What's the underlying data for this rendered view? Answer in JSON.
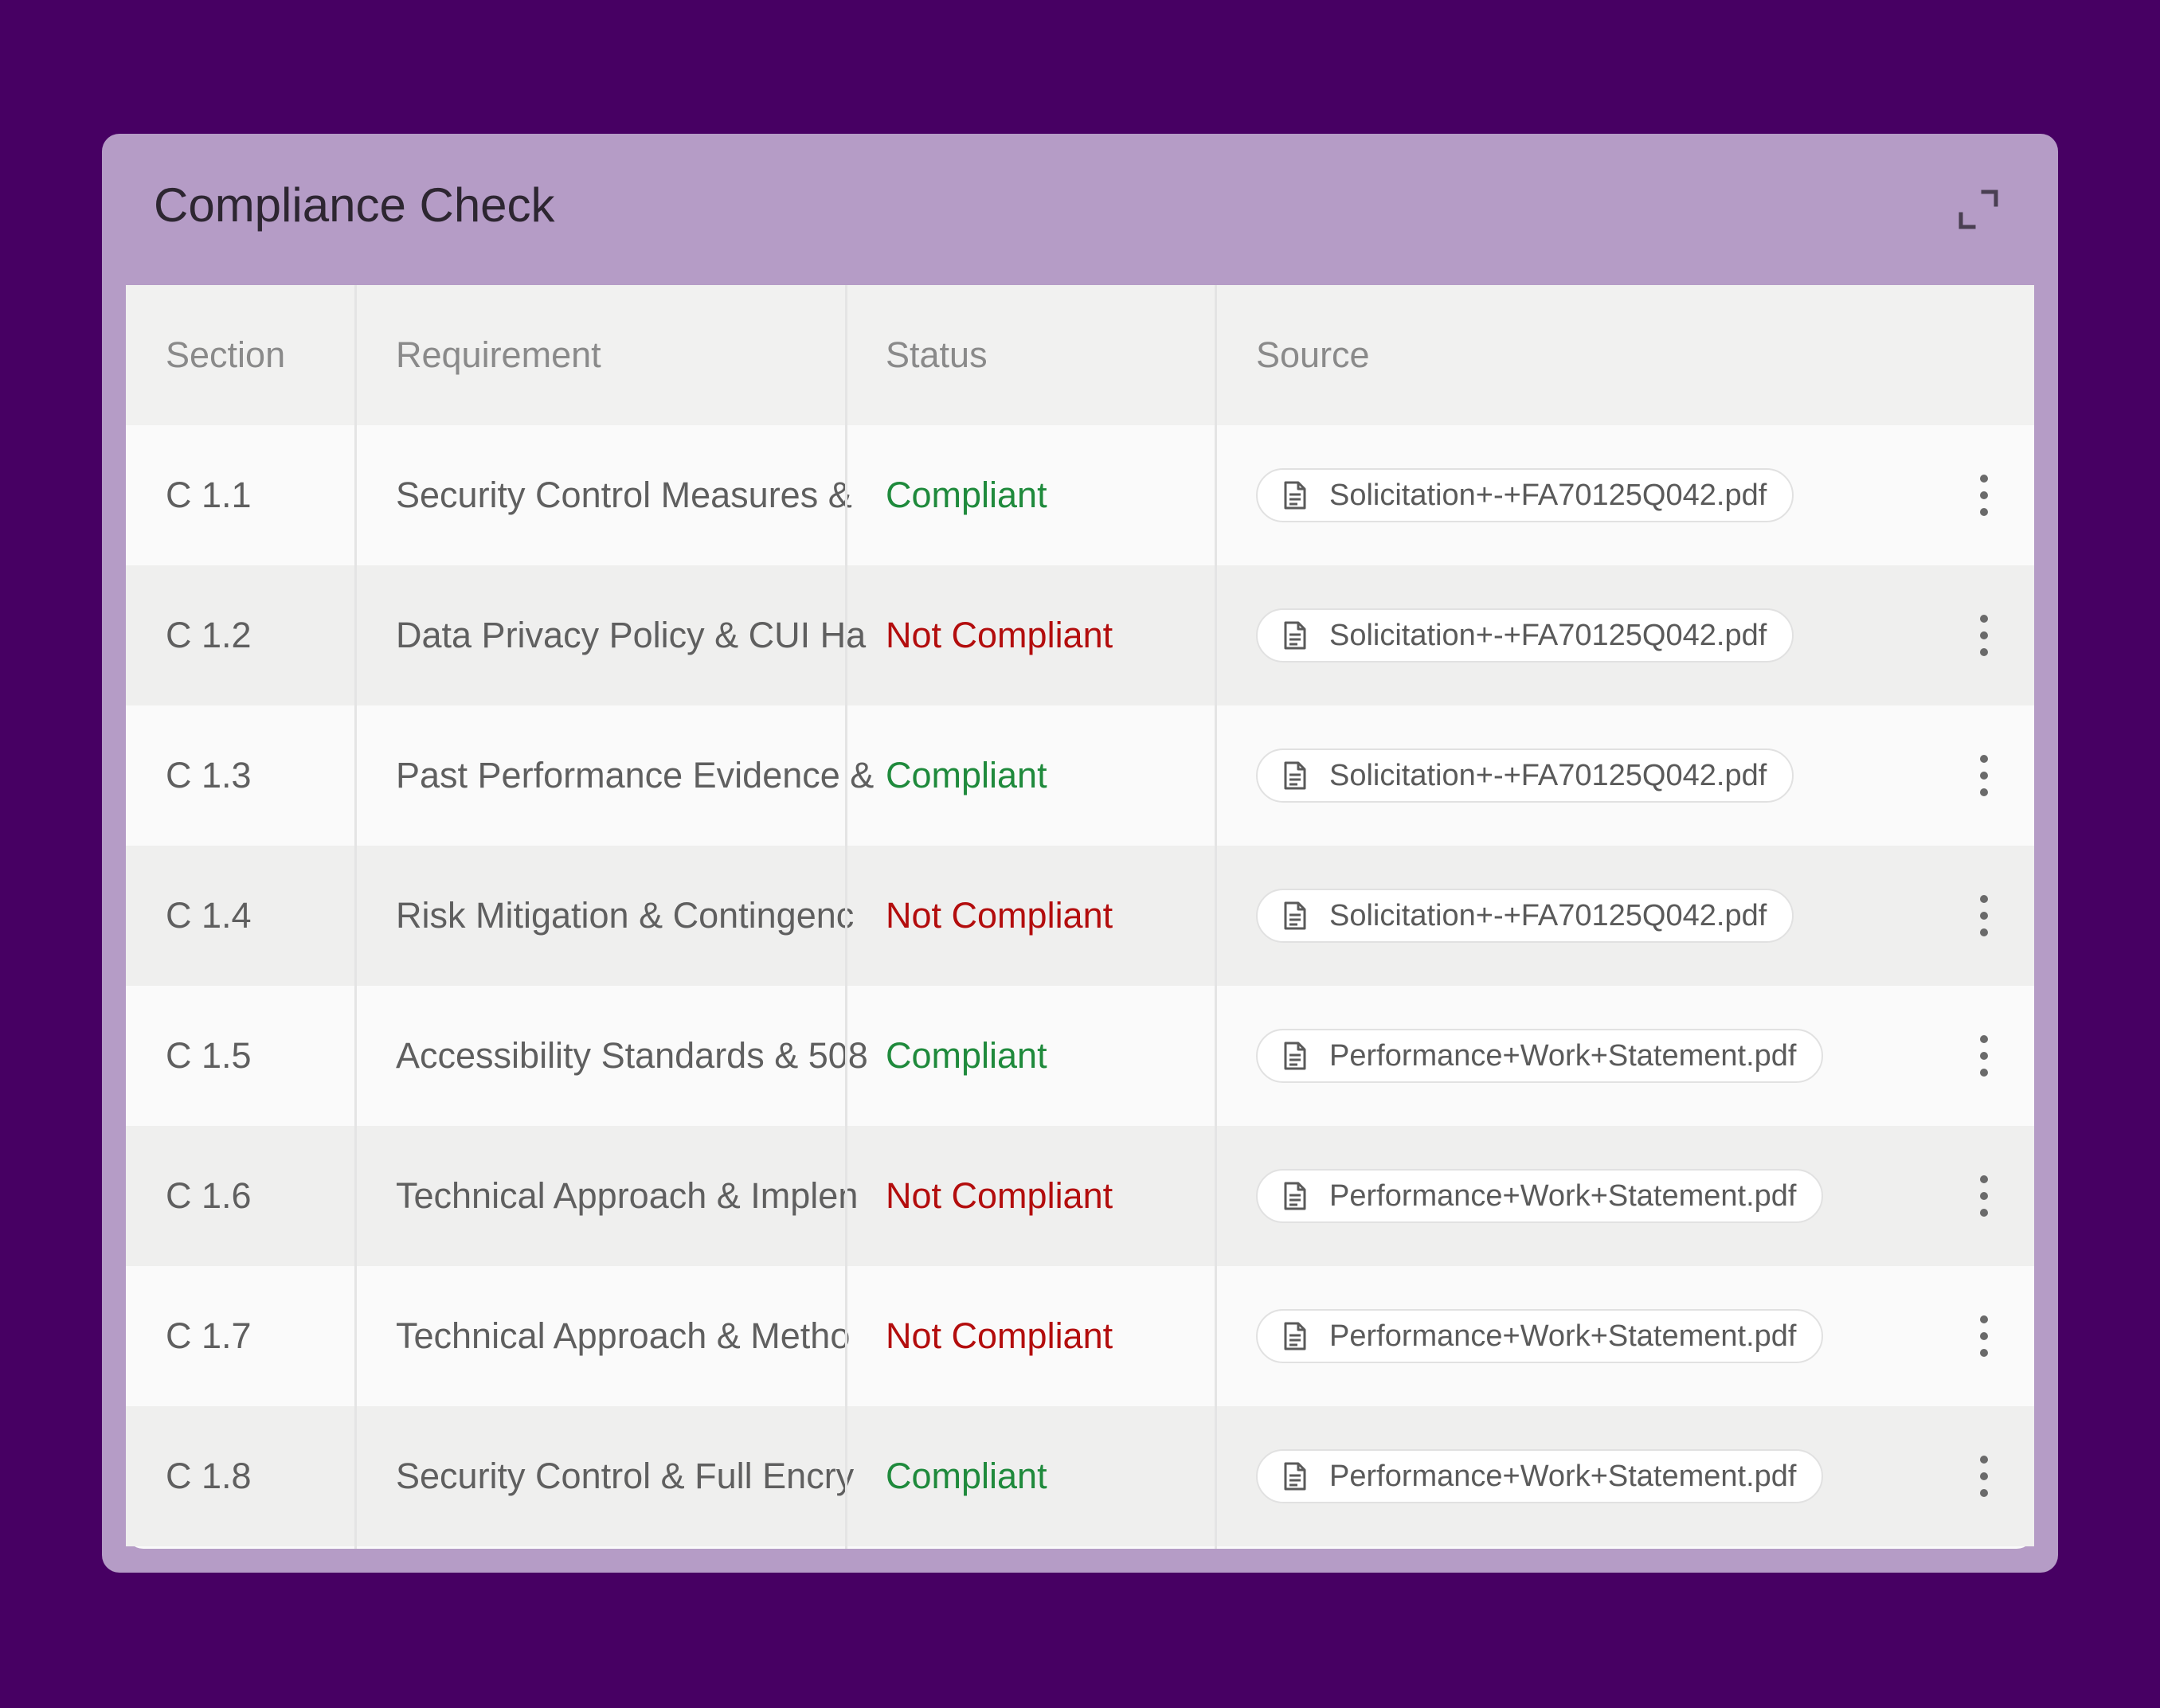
{
  "panel": {
    "title": "Compliance Check",
    "expand_icon": "expand-icon"
  },
  "table": {
    "columns": [
      "Section",
      "Requirement",
      "Status",
      "Source"
    ],
    "rows": [
      {
        "section": "C 1.1",
        "requirement": "Security Control Measures &",
        "status": "Compliant",
        "source": "Solicitation+-+FA70125Q042.pdf"
      },
      {
        "section": "C 1.2",
        "requirement": "Data Privacy Policy & CUI Ha",
        "status": "Not Compliant",
        "source": "Solicitation+-+FA70125Q042.pdf"
      },
      {
        "section": "C 1.3",
        "requirement": "Past Performance Evidence &",
        "status": "Compliant",
        "source": "Solicitation+-+FA70125Q042.pdf"
      },
      {
        "section": "C 1.4",
        "requirement": "Risk Mitigation & Contingenc",
        "status": "Not Compliant",
        "source": "Solicitation+-+FA70125Q042.pdf"
      },
      {
        "section": "C 1.5",
        "requirement": "Accessibility Standards & 508",
        "status": "Compliant",
        "source": "Performance+Work+Statement.pdf"
      },
      {
        "section": "C 1.6",
        "requirement": "Technical Approach & Implen",
        "status": "Not Compliant",
        "source": "Performance+Work+Statement.pdf"
      },
      {
        "section": "C 1.7",
        "requirement": "Technical Approach & Metho",
        "status": "Not Compliant",
        "source": "Performance+Work+Statement.pdf"
      },
      {
        "section": "C 1.8",
        "requirement": "Security Control & Full Encry",
        "status": "Compliant",
        "source": "Performance+Work+Statement.pdf"
      }
    ]
  },
  "colors": {
    "background": "#470063",
    "panel": "#b59cc6",
    "compliant": "#1f8a3c",
    "not_compliant": "#b30d0d"
  },
  "icons": {
    "source_chip": "document-icon",
    "row_menu": "more-vertical-icon"
  }
}
